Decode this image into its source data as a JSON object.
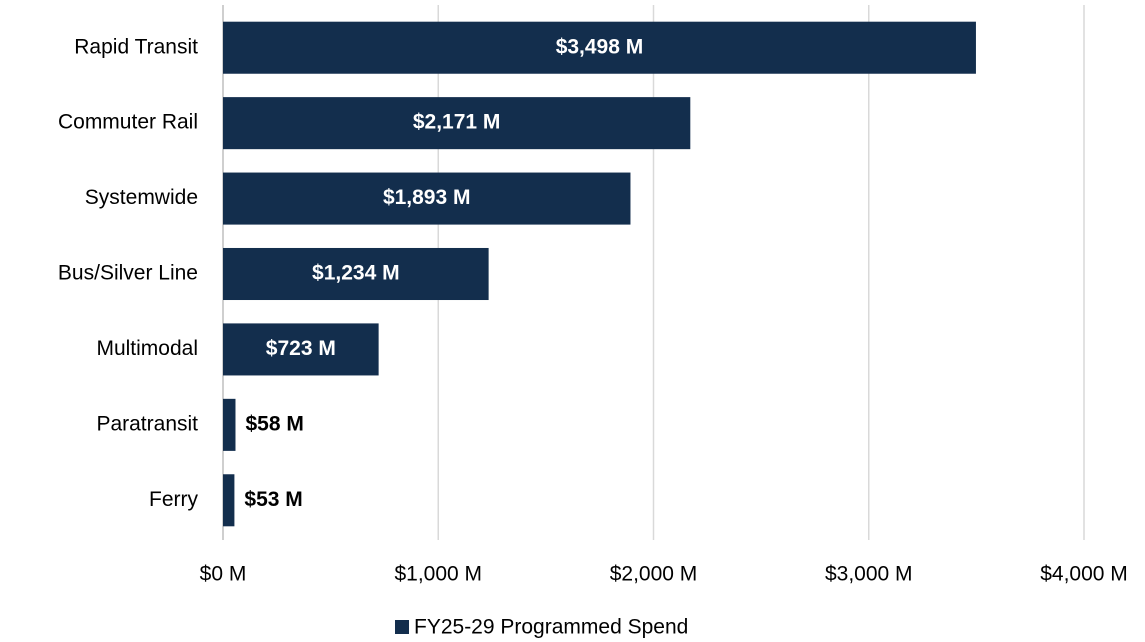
{
  "chart_data": {
    "type": "barh",
    "categories": [
      "Rapid Transit",
      "Commuter Rail",
      "Systemwide",
      "Bus/Silver Line",
      "Multimodal",
      "Paratransit",
      "Ferry"
    ],
    "series": [
      {
        "name": "FY25-29 Programmed Spend",
        "color": "#132e4d",
        "values": [
          3498,
          2171,
          1893,
          1234,
          723,
          58,
          53
        ],
        "value_labels": [
          "$3,498 M",
          "$2,171 M",
          "$1,893 M",
          "$1,234 M",
          "$723 M",
          "$58 M",
          "$53 M"
        ]
      }
    ],
    "xlim": [
      0,
      4000
    ],
    "xticks": [
      {
        "value": 0,
        "label": "$0 M"
      },
      {
        "value": 1000,
        "label": "$1,000 M"
      },
      {
        "value": 2000,
        "label": "$2,000 M"
      },
      {
        "value": 3000,
        "label": "$3,000 M"
      },
      {
        "value": 4000,
        "label": "$4,000 M"
      }
    ],
    "grid": true,
    "legend": "bottom"
  }
}
